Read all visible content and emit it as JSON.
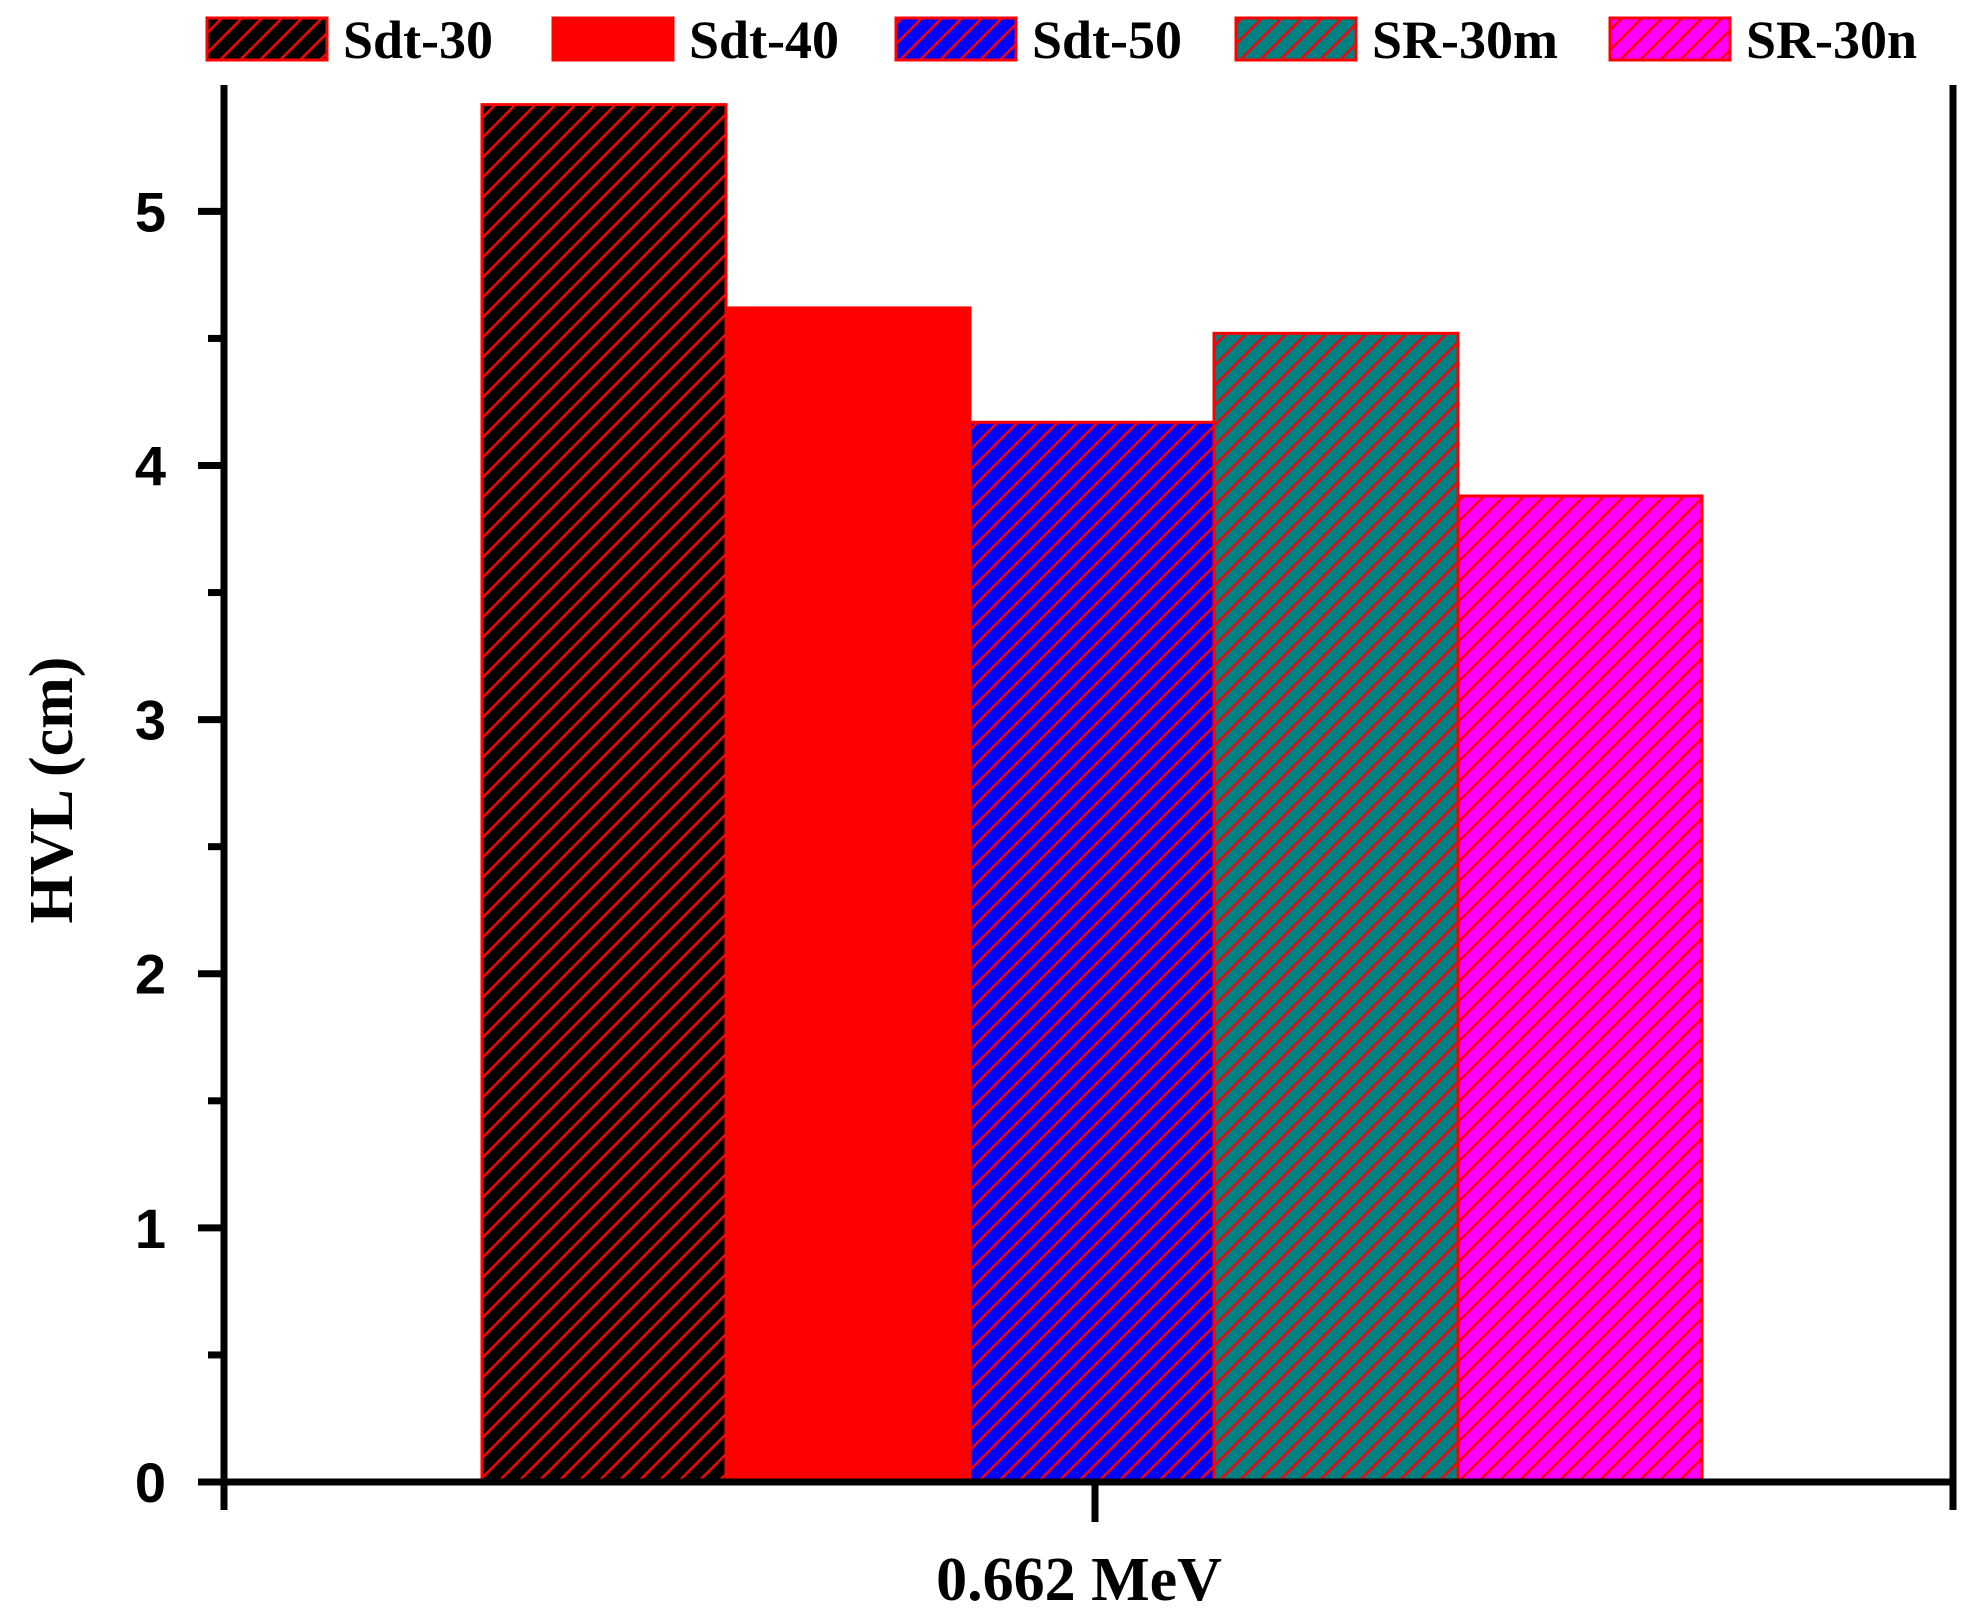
{
  "chart_data": {
    "type": "bar",
    "categories": [
      "0.662 MeV"
    ],
    "series": [
      {
        "name": "Sdt-30",
        "values": [
          5.42
        ],
        "fill": "#000000",
        "hatch": true
      },
      {
        "name": "Sdt-40",
        "values": [
          4.62
        ],
        "fill": "#ff0000",
        "hatch": false
      },
      {
        "name": "Sdt-50",
        "values": [
          4.17
        ],
        "fill": "#0000ff",
        "hatch": true
      },
      {
        "name": "SR-30m",
        "values": [
          4.52
        ],
        "fill": "#008080",
        "hatch": true
      },
      {
        "name": "SR-30n",
        "values": [
          3.88
        ],
        "fill": "#ff00ff",
        "hatch": true
      }
    ],
    "xlabel": "0.662 MeV",
    "ylabel": "HVL (cm)",
    "ylim": [
      0,
      5.45
    ],
    "yticks": [
      "0",
      "1",
      "2",
      "3",
      "4",
      "5"
    ],
    "legend": "top",
    "grid": false,
    "edge_color": "#ff0000",
    "hatch_color": "#ff0000"
  }
}
